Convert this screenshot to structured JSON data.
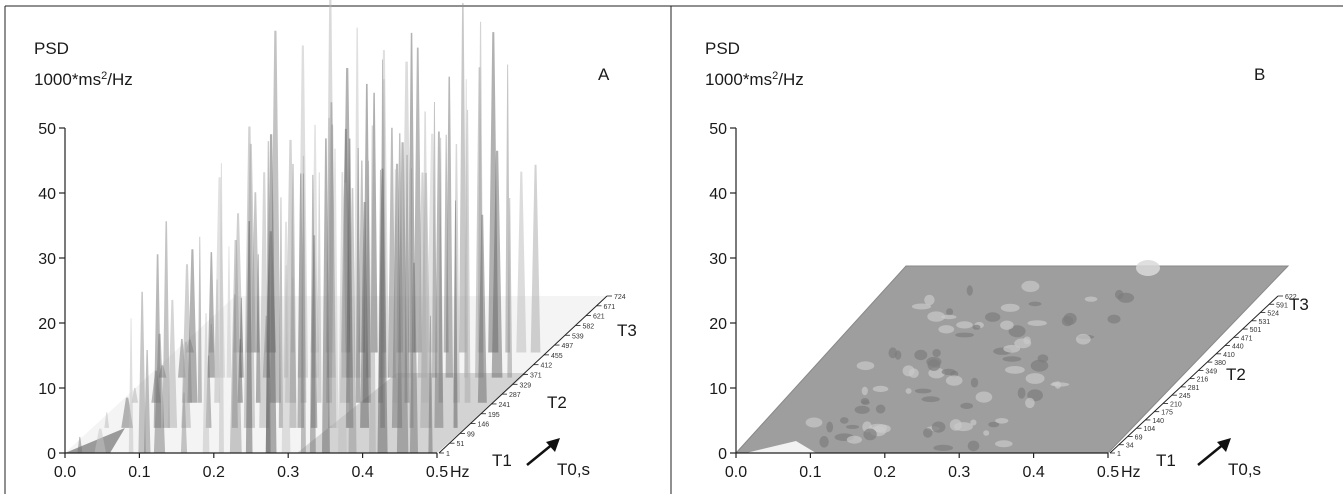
{
  "chart_data": [
    {
      "type": "3d-spectral-surface",
      "panel_label": "A",
      "ylabel_line1": "PSD",
      "ylabel_line2_pre": "1000*ms",
      "ylabel_line2_sup": "2",
      "ylabel_line2_post": "/Hz",
      "y_ticks": [
        "0",
        "10",
        "20",
        "30",
        "40",
        "50"
      ],
      "ylim": [
        0,
        50
      ],
      "x_ticks": [
        "0.0",
        "0.1",
        "0.2",
        "0.3",
        "0.4",
        "0.5"
      ],
      "xlim": [
        0,
        0.5
      ],
      "x_unit": "Hz",
      "time_ticks": [
        "1",
        "51",
        "99",
        "146",
        "195",
        "241",
        "287",
        "329",
        "371",
        "412",
        "455",
        "497",
        "539",
        "582",
        "621",
        "671",
        "724"
      ],
      "period_labels": [
        "T1",
        "T2",
        "T3"
      ],
      "time_axis_label": "T0,s",
      "ridges": [
        {
          "x": 0.02,
          "y": 3
        },
        {
          "x": 0.05,
          "y": 6
        },
        {
          "x": 0.09,
          "y": 28
        },
        {
          "x": 0.1,
          "y": 34
        },
        {
          "x": 0.11,
          "y": 26
        },
        {
          "x": 0.13,
          "y": 20
        },
        {
          "x": 0.16,
          "y": 15
        },
        {
          "x": 0.19,
          "y": 24
        },
        {
          "x": 0.21,
          "y": 58
        },
        {
          "x": 0.23,
          "y": 52
        },
        {
          "x": 0.25,
          "y": 44
        },
        {
          "x": 0.27,
          "y": 58
        },
        {
          "x": 0.28,
          "y": 55
        },
        {
          "x": 0.3,
          "y": 40
        },
        {
          "x": 0.32,
          "y": 52
        },
        {
          "x": 0.33,
          "y": 58
        },
        {
          "x": 0.35,
          "y": 56
        },
        {
          "x": 0.37,
          "y": 48
        },
        {
          "x": 0.39,
          "y": 58
        },
        {
          "x": 0.41,
          "y": 58
        },
        {
          "x": 0.43,
          "y": 56
        },
        {
          "x": 0.45,
          "y": 52
        },
        {
          "x": 0.47,
          "y": 46
        },
        {
          "x": 0.49,
          "y": 35
        }
      ]
    },
    {
      "type": "3d-spectral-surface",
      "panel_label": "B",
      "ylabel_line1": "PSD",
      "ylabel_line2_pre": "1000*ms",
      "ylabel_line2_sup": "2",
      "ylabel_line2_post": "/Hz",
      "y_ticks": [
        "0",
        "10",
        "20",
        "30",
        "40",
        "50"
      ],
      "ylim": [
        0,
        50
      ],
      "x_ticks": [
        "0.0",
        "0.1",
        "0.2",
        "0.3",
        "0.4",
        "0.5"
      ],
      "xlim": [
        0,
        0.5
      ],
      "x_unit": "Hz",
      "time_ticks": [
        "1",
        "34",
        "69",
        "104",
        "140",
        "175",
        "210",
        "245",
        "281",
        "216",
        "349",
        "380",
        "410",
        "440",
        "471",
        "501",
        "531",
        "524",
        "591",
        "622"
      ],
      "period_labels": [
        "T1",
        "T2",
        "T3"
      ],
      "time_axis_label": "T0,s"
    }
  ]
}
